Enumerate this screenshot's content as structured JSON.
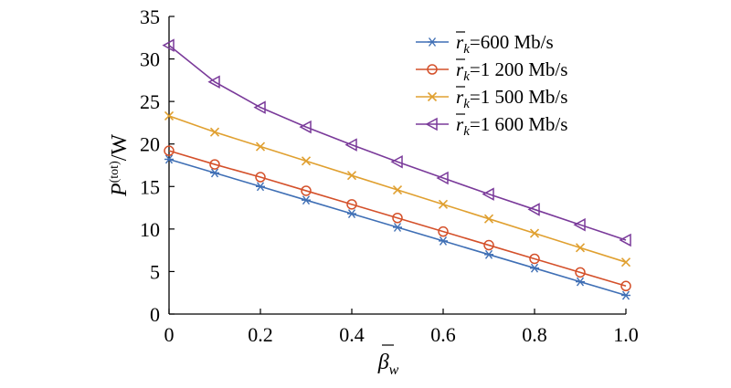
{
  "chart_data": {
    "type": "line",
    "xlabel": {
      "base": "β",
      "sub": "w"
    },
    "ylabel": {
      "base": "P",
      "sup": "(tot)",
      "tail": "/W"
    },
    "xlim": [
      0,
      1.0
    ],
    "ylim": [
      0,
      35
    ],
    "x": [
      0,
      0.1,
      0.2,
      0.3,
      0.4,
      0.5,
      0.6,
      0.7,
      0.8,
      0.9,
      1.0
    ],
    "xticks": [
      "0",
      "0.2",
      "0.4",
      "0.6",
      "0.8",
      "1.0"
    ],
    "yticks": [
      "0",
      "5",
      "10",
      "15",
      "20",
      "25",
      "30",
      "35"
    ],
    "grid": false,
    "legend_position": "top-right",
    "series": [
      {
        "name": "r̄k=600 Mb/s",
        "label_prefix": "r",
        "label_sub": "k",
        "label_value": "=600 Mb/s",
        "color": "#3f6fb5",
        "marker": "asterisk",
        "values": [
          18.2,
          16.6,
          15.0,
          13.4,
          11.8,
          10.2,
          8.6,
          7.0,
          5.4,
          3.8,
          2.2
        ]
      },
      {
        "name": "r̄k=1 200 Mb/s",
        "label_prefix": "r",
        "label_sub": "k",
        "label_value": "=1 200 Mb/s",
        "color": "#d4502a",
        "marker": "circle",
        "values": [
          19.2,
          17.6,
          16.1,
          14.5,
          12.9,
          11.3,
          9.7,
          8.1,
          6.5,
          4.9,
          3.3
        ]
      },
      {
        "name": "r̄k=1 500 Mb/s",
        "label_prefix": "r",
        "label_sub": "k",
        "label_value": "=1 500 Mb/s",
        "color": "#e0a030",
        "marker": "x",
        "values": [
          23.3,
          21.4,
          19.7,
          18.0,
          16.3,
          14.6,
          12.9,
          11.2,
          9.5,
          7.8,
          6.1
        ]
      },
      {
        "name": "r̄k=1 600 Mb/s",
        "label_prefix": "r",
        "label_sub": "k",
        "label_value": "=1 600 Mb/s",
        "color": "#7a3a9a",
        "marker": "triangle-left",
        "values": [
          31.6,
          27.3,
          24.3,
          22.0,
          19.9,
          17.9,
          16.0,
          14.1,
          12.3,
          10.5,
          8.7
        ]
      }
    ]
  }
}
